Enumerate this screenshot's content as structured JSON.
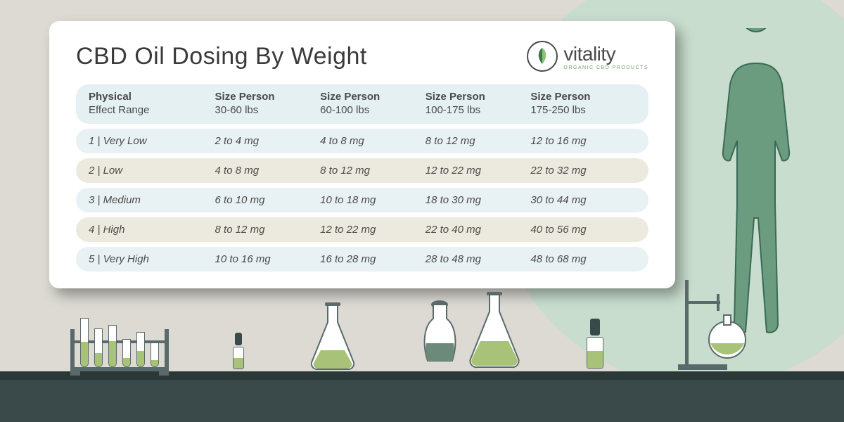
{
  "title": "CBD Oil Dosing By Weight",
  "brand": {
    "name": "vitality",
    "subtitle": "ORGANIC CBD PRODUCTS"
  },
  "colors": {
    "bg": "#dcdad3",
    "bg_curve": "#c8ddce",
    "shelf": "#3a4a4a",
    "shelf_top": "#2a3838",
    "card_bg": "#ffffff",
    "header_row_bg": "#e4f0f2",
    "row_blue": "#e8f1f3",
    "row_tan": "#eceade",
    "text": "#4a4a4a",
    "accent_green": "#6fa070",
    "liquid": "#a8c278",
    "liquid_dark": "#6b8a7a",
    "human_fill": "#6b9c7f",
    "human_stroke": "#3a6a58",
    "glass_stroke": "#5a6a6a"
  },
  "table": {
    "columns": [
      "Physical\nEffect Range",
      "Size Person\n30-60 lbs",
      "Size Person\n60-100 lbs",
      "Size Person\n100-175 lbs",
      "Size Person\n175-250 lbs"
    ],
    "rows": [
      {
        "label": "1 | Very Low",
        "cells": [
          "2 to 4 mg",
          "4 to 8 mg",
          "8 to 12 mg",
          "12 to 16 mg"
        ],
        "variant": "blue"
      },
      {
        "label": "2 | Low",
        "cells": [
          "4 to 8 mg",
          "8 to 12 mg",
          "12 to 22 mg",
          "22 to 32 mg"
        ],
        "variant": "tan"
      },
      {
        "label": "3 | Medium",
        "cells": [
          "6 to 10 mg",
          "10 to 18 mg",
          "18 to 30 mg",
          "30 to 44 mg"
        ],
        "variant": "blue"
      },
      {
        "label": "4 | High",
        "cells": [
          "8 to 12 mg",
          "12 to 22 mg",
          "22 to 40 mg",
          "40 to 56 mg"
        ],
        "variant": "tan"
      },
      {
        "label": "5 | Very High",
        "cells": [
          "10 to 16 mg",
          "16 to 28 mg",
          "28 to 48 mg",
          "48 to 68 mg"
        ],
        "variant": "blue"
      }
    ]
  },
  "test_tubes": {
    "heights": [
      70,
      55,
      60,
      40,
      50,
      35
    ],
    "fills": [
      0.5,
      0.35,
      0.6,
      0.3,
      0.45,
      0.25
    ]
  }
}
